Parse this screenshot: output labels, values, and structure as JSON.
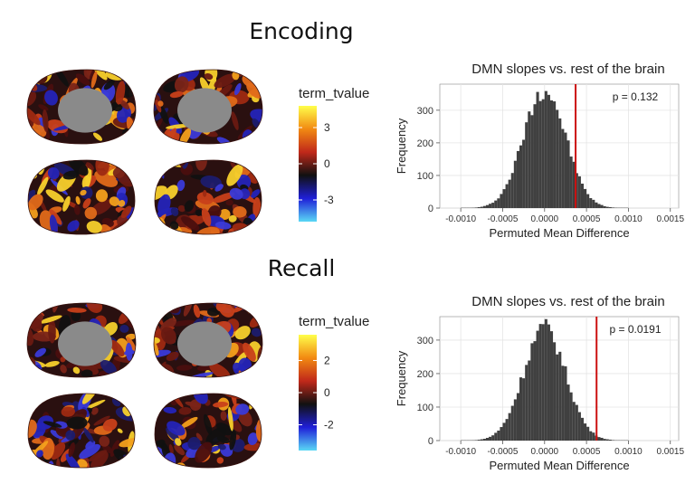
{
  "sections": [
    {
      "title": "Encoding",
      "colorbar": {
        "title": "term_tvalue",
        "ticks": [
          "3",
          "0",
          "-3"
        ],
        "tick_values": [
          3,
          0,
          -3
        ],
        "range": [
          -4.8,
          4.8
        ],
        "colors": [
          "#ffff4a",
          "#f28a12",
          "#c0281a",
          "#111111",
          "#1f1fd8",
          "#5ad8f5"
        ]
      }
    },
    {
      "title": "Recall",
      "colorbar": {
        "title": "term_tvalue",
        "ticks": [
          "2",
          "0",
          "-2"
        ],
        "tick_values": [
          2,
          0,
          -2
        ],
        "range": [
          -3.6,
          3.6
        ],
        "colors": [
          "#ffff4a",
          "#f28a12",
          "#c0281a",
          "#111111",
          "#1f1fd8",
          "#5ad8f5"
        ]
      }
    }
  ],
  "chart_data": [
    {
      "type": "bar",
      "title": "DMN slopes vs. rest of the brain",
      "xlabel": "Permuted Mean Difference",
      "ylabel": "Frequency",
      "annotation": "p = 0.132",
      "xlim": [
        -0.00125,
        0.0016
      ],
      "ylim": [
        0,
        380
      ],
      "x_ticks": [
        -0.001,
        -0.0005,
        0.0,
        0.0005,
        0.001,
        0.0015
      ],
      "x_tick_labels": [
        "-0.0010",
        "-0.0005",
        "0.0000",
        "0.0005",
        "0.0010",
        "0.0015"
      ],
      "y_ticks": [
        0,
        100,
        200,
        300
      ],
      "y_tick_labels": [
        "0",
        "100",
        "200",
        "300"
      ],
      "hist_mean": 0.0,
      "hist_sd": 0.00025,
      "hist_peak": 370,
      "observed_value": 0.00037,
      "observed_line_color": "#cc1111",
      "bar_color": "#404040"
    },
    {
      "type": "bar",
      "title": "DMN slopes vs. rest of the brain",
      "xlabel": "Permuted Mean Difference",
      "ylabel": "Frequency",
      "annotation": "p = 0.0191",
      "xlim": [
        -0.00125,
        0.0016
      ],
      "ylim": [
        0,
        370
      ],
      "x_ticks": [
        -0.001,
        -0.0005,
        0.0,
        0.0005,
        0.001,
        0.0015
      ],
      "x_tick_labels": [
        "-0.0010",
        "-0.0005",
        "0.0000",
        "0.0005",
        "0.0010",
        "0.0015"
      ],
      "y_ticks": [
        0,
        100,
        200,
        300
      ],
      "y_tick_labels": [
        "0",
        "100",
        "200",
        "300"
      ],
      "hist_mean": 0.0,
      "hist_sd": 0.00025,
      "hist_peak": 340,
      "observed_value": 0.00062,
      "observed_line_color": "#cc1111",
      "bar_color": "#404040"
    }
  ]
}
